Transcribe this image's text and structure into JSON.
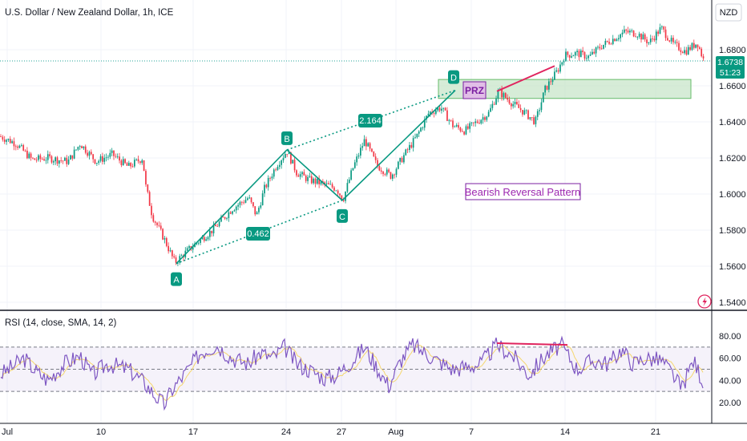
{
  "chart_data": [
    {
      "type": "candlestick",
      "title": "U.S. Dollar / New Zealand Dollar, 1h, ICE",
      "currency": "NZD",
      "last_price": "1.6738",
      "countdown": "51:23",
      "y_ticks": [
        "1.6800",
        "1.6600",
        "1.6400",
        "1.6200",
        "1.6000",
        "1.5800",
        "1.5600",
        "1.5400"
      ],
      "ylim": [
        1.535,
        1.696
      ],
      "x_ticks": [
        "Jul",
        "10",
        "17",
        "24",
        "27",
        "Aug",
        "7",
        "14",
        "21"
      ],
      "close_path": [
        [
          0,
          1.632
        ],
        [
          20,
          1.628
        ],
        [
          40,
          1.619
        ],
        [
          60,
          1.62
        ],
        [
          85,
          1.618
        ],
        [
          100,
          1.628
        ],
        [
          120,
          1.618
        ],
        [
          140,
          1.622
        ],
        [
          160,
          1.615
        ],
        [
          178,
          1.62
        ],
        [
          182,
          1.604
        ],
        [
          190,
          1.588
        ],
        [
          205,
          1.575
        ],
        [
          218,
          1.562
        ],
        [
          240,
          1.571
        ],
        [
          265,
          1.58
        ],
        [
          290,
          1.592
        ],
        [
          310,
          1.598
        ],
        [
          320,
          1.588
        ],
        [
          330,
          1.603
        ],
        [
          345,
          1.616
        ],
        [
          358,
          1.624
        ],
        [
          370,
          1.612
        ],
        [
          385,
          1.608
        ],
        [
          400,
          1.606
        ],
        [
          420,
          1.603
        ],
        [
          428,
          1.597
        ],
        [
          440,
          1.614
        ],
        [
          455,
          1.63
        ],
        [
          470,
          1.616
        ],
        [
          488,
          1.61
        ],
        [
          505,
          1.622
        ],
        [
          520,
          1.632
        ],
        [
          535,
          1.645
        ],
        [
          550,
          1.648
        ],
        [
          565,
          1.638
        ],
        [
          580,
          1.635
        ],
        [
          595,
          1.64
        ],
        [
          610,
          1.645
        ],
        [
          622,
          1.657
        ],
        [
          640,
          1.65
        ],
        [
          655,
          1.645
        ],
        [
          668,
          1.64
        ],
        [
          680,
          1.658
        ],
        [
          695,
          1.668
        ],
        [
          705,
          1.677
        ],
        [
          720,
          1.678
        ],
        [
          735,
          1.676
        ],
        [
          750,
          1.682
        ],
        [
          765,
          1.686
        ],
        [
          780,
          1.69
        ],
        [
          795,
          1.689
        ],
        [
          810,
          1.684
        ],
        [
          825,
          1.692
        ],
        [
          840,
          1.683
        ],
        [
          855,
          1.679
        ],
        [
          870,
          1.684
        ],
        [
          878,
          1.674
        ]
      ],
      "pattern": {
        "points": [
          {
            "name": "A",
            "x": 220,
            "price": 1.5615
          },
          {
            "name": "B",
            "x": 358,
            "price": 1.6245
          },
          {
            "name": "C",
            "x": 427,
            "price": 1.5965
          },
          {
            "name": "D",
            "x": 568,
            "price": 1.6575
          }
        ],
        "ratio_ac": "0.462",
        "ratio_bd": "2.164"
      },
      "prz": {
        "label": "PRZ",
        "x_start": 547,
        "x_end": 862,
        "price_top": 1.6635,
        "price_bottom": 1.653
      },
      "annotation": "Bearish Reversal Pattern",
      "divergence_line": {
        "x1": 620,
        "price1": 1.657,
        "x2": 692,
        "price2": 1.671
      }
    },
    {
      "type": "line",
      "title": "RSI (14, close, SMA, 14, 2)",
      "y_ticks": [
        "80.00",
        "60.00",
        "40.00",
        "20.00"
      ],
      "ylim": [
        8,
        97
      ],
      "bands": [
        70,
        50,
        30
      ],
      "rsi_path": [
        [
          0,
          45
        ],
        [
          15,
          52
        ],
        [
          30,
          60
        ],
        [
          45,
          48
        ],
        [
          60,
          40
        ],
        [
          80,
          55
        ],
        [
          100,
          62
        ],
        [
          115,
          45
        ],
        [
          135,
          55
        ],
        [
          160,
          50
        ],
        [
          180,
          38
        ],
        [
          195,
          25
        ],
        [
          205,
          18
        ],
        [
          215,
          32
        ],
        [
          235,
          50
        ],
        [
          250,
          65
        ],
        [
          270,
          72
        ],
        [
          290,
          60
        ],
        [
          310,
          55
        ],
        [
          325,
          65
        ],
        [
          340,
          60
        ],
        [
          355,
          70
        ],
        [
          370,
          55
        ],
        [
          390,
          48
        ],
        [
          405,
          42
        ],
        [
          420,
          45
        ],
        [
          440,
          58
        ],
        [
          455,
          70
        ],
        [
          470,
          52
        ],
        [
          485,
          35
        ],
        [
          500,
          58
        ],
        [
          515,
          72
        ],
        [
          530,
          65
        ],
        [
          545,
          58
        ],
        [
          565,
          50
        ],
        [
          580,
          52
        ],
        [
          600,
          55
        ],
        [
          620,
          72
        ],
        [
          640,
          62
        ],
        [
          660,
          45
        ],
        [
          680,
          62
        ],
        [
          700,
          72
        ],
        [
          720,
          50
        ],
        [
          740,
          58
        ],
        [
          760,
          55
        ],
        [
          775,
          68
        ],
        [
          790,
          55
        ],
        [
          805,
          60
        ],
        [
          825,
          58
        ],
        [
          840,
          45
        ],
        [
          850,
          32
        ],
        [
          865,
          58
        ],
        [
          878,
          38
        ]
      ],
      "rsi_divergence": {
        "x1": 620,
        "value1": 73.5,
        "x2": 708,
        "value2": 72.0
      }
    }
  ]
}
